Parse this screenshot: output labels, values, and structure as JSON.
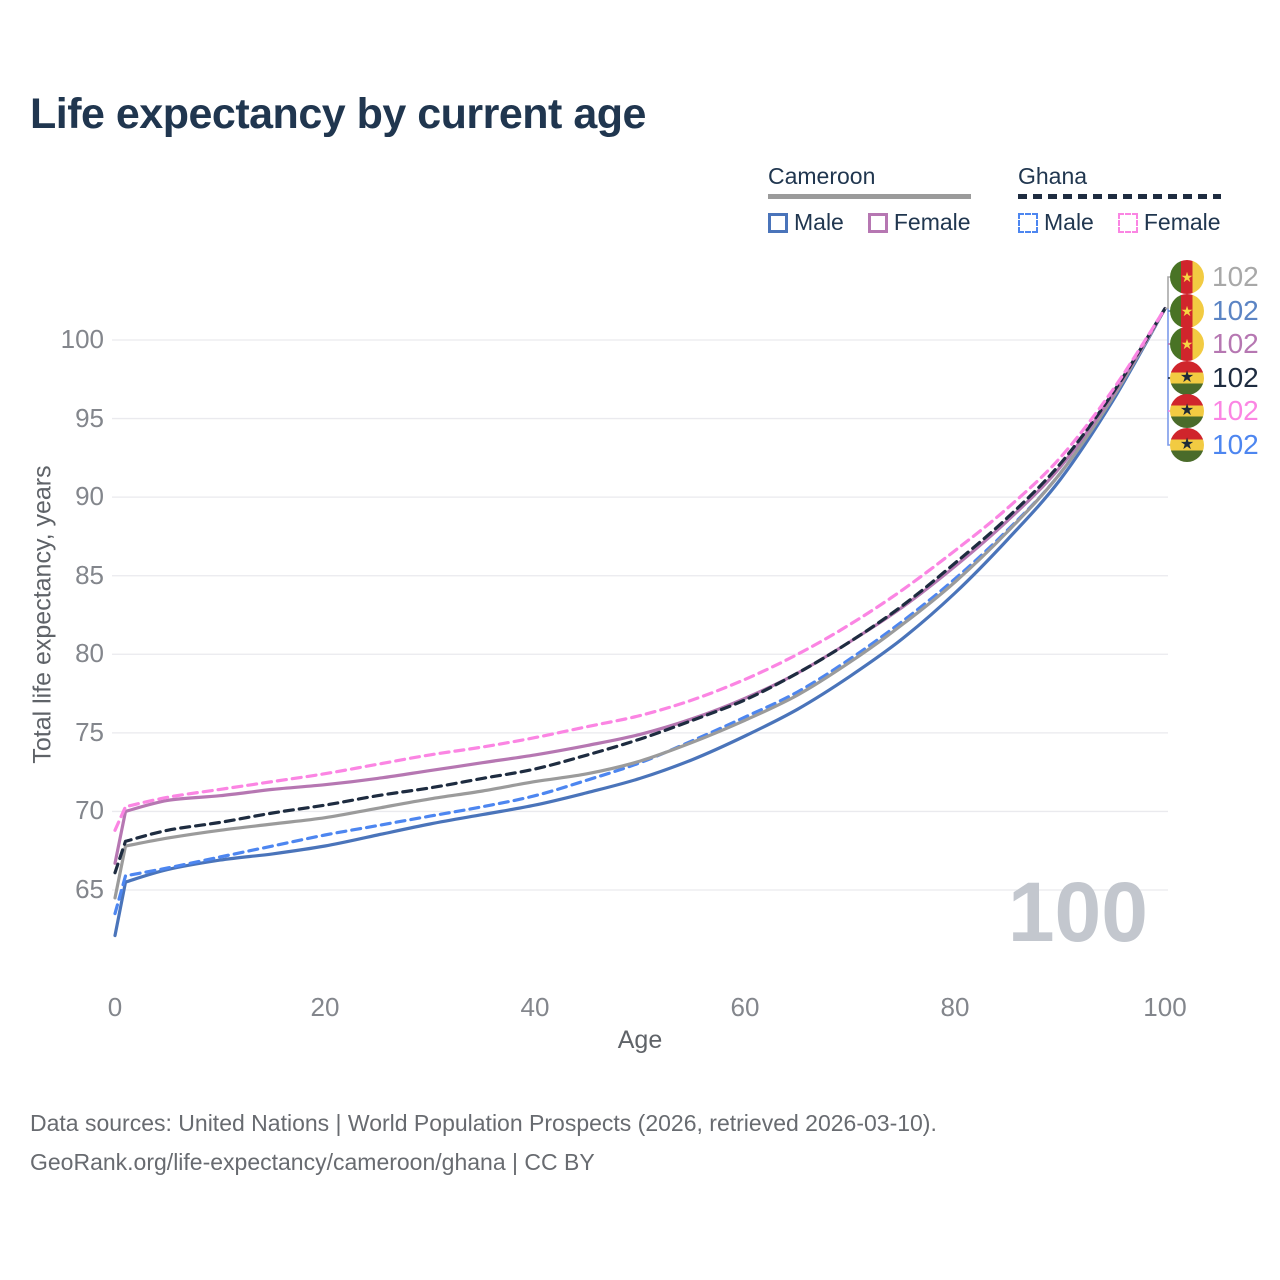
{
  "title": "Life expectancy by current age",
  "legend": {
    "groups": [
      {
        "id": "cameroon",
        "label": "Cameroon",
        "line_style": "solid",
        "line_color": "#9b9b9b",
        "items": [
          {
            "id": "cameroon-male",
            "label": "Male",
            "color": "#4a74ba",
            "style": "solid"
          },
          {
            "id": "cameroon-female",
            "label": "Female",
            "color": "#b677b2",
            "style": "solid"
          }
        ]
      },
      {
        "id": "ghana",
        "label": "Ghana",
        "line_style": "dashed",
        "line_color": "#1e2c40",
        "items": [
          {
            "id": "ghana-male",
            "label": "Male",
            "color": "#4d86f0",
            "style": "dashed"
          },
          {
            "id": "ghana-female",
            "label": "Female",
            "color": "#fb85e3",
            "style": "dashed"
          }
        ]
      }
    ]
  },
  "chart_data": {
    "type": "line",
    "title": "Life expectancy by current age",
    "xlabel": "Age",
    "ylabel": "Total life expectancy, years",
    "xlim": [
      0,
      100
    ],
    "ylim": [
      65,
      100
    ],
    "x_ticks": [
      0,
      20,
      40,
      60,
      80,
      100
    ],
    "y_ticks": [
      65,
      70,
      75,
      80,
      85,
      90,
      95,
      100
    ],
    "grid": "horizontal",
    "legend_position": "top-right",
    "ages": [
      0,
      1,
      5,
      10,
      15,
      20,
      25,
      30,
      35,
      40,
      45,
      50,
      55,
      60,
      65,
      70,
      75,
      80,
      85,
      90,
      95,
      100
    ],
    "series": [
      {
        "id": "cameroon-male",
        "country": "Cameroon",
        "group": "Male",
        "color": "#4a74ba",
        "dash": "solid",
        "values": [
          62.1,
          65.5,
          66.3,
          66.9,
          67.3,
          67.8,
          68.5,
          69.2,
          69.8,
          70.4,
          71.2,
          72.1,
          73.3,
          74.8,
          76.5,
          78.6,
          81.0,
          83.9,
          87.3,
          91.1,
          96.1,
          102
        ]
      },
      {
        "id": "ghana-male",
        "country": "Ghana",
        "group": "Male",
        "color": "#4d86f0",
        "dash": "dashed",
        "values": [
          63.5,
          65.9,
          66.4,
          67.1,
          67.8,
          68.5,
          69.1,
          69.7,
          70.3,
          71.0,
          72.0,
          73.1,
          74.5,
          76.0,
          77.6,
          79.7,
          82.1,
          84.8,
          87.9,
          91.5,
          96.4,
          102
        ]
      },
      {
        "id": "cameroon-average",
        "country": "Cameroon",
        "group": "Average",
        "color": "#9b9b9b",
        "dash": "solid",
        "values": [
          64.5,
          67.8,
          68.3,
          68.8,
          69.2,
          69.6,
          70.2,
          70.8,
          71.3,
          71.9,
          72.4,
          73.2,
          74.4,
          75.8,
          77.4,
          79.5,
          81.9,
          84.6,
          87.8,
          91.5,
          96.3,
          102
        ]
      },
      {
        "id": "cameroon-female",
        "country": "Cameroon",
        "group": "Female",
        "color": "#b677b2",
        "dash": "solid",
        "values": [
          66.7,
          70.0,
          70.7,
          71.0,
          71.4,
          71.7,
          72.1,
          72.6,
          73.1,
          73.6,
          74.2,
          74.9,
          75.9,
          77.2,
          78.8,
          80.8,
          83.0,
          85.6,
          88.5,
          91.9,
          96.5,
          102
        ]
      },
      {
        "id": "ghana-average",
        "country": "Ghana",
        "group": "Average",
        "color": "#1e2c40",
        "dash": "dashed",
        "values": [
          66.1,
          68.1,
          68.8,
          69.3,
          69.9,
          70.4,
          71.0,
          71.5,
          72.1,
          72.7,
          73.6,
          74.6,
          75.8,
          77.1,
          78.8,
          80.8,
          83.1,
          85.8,
          88.7,
          92.1,
          96.6,
          102
        ]
      },
      {
        "id": "ghana-female",
        "country": "Ghana",
        "group": "Female",
        "color": "#fb85e3",
        "dash": "dashed",
        "values": [
          68.8,
          70.3,
          70.9,
          71.4,
          71.9,
          72.4,
          73.0,
          73.6,
          74.1,
          74.7,
          75.4,
          76.1,
          77.1,
          78.4,
          80.0,
          81.9,
          84.1,
          86.6,
          89.3,
          92.5,
          96.8,
          102
        ]
      }
    ],
    "end_labels": [
      {
        "flag": "cameroon",
        "series": "cameroon-average",
        "value": "102",
        "color": "#a8a8a8"
      },
      {
        "flag": "cameroon",
        "series": "cameroon-male",
        "value": "102",
        "color": "#5b84c4"
      },
      {
        "flag": "cameroon",
        "series": "cameroon-female",
        "value": "102",
        "color": "#b677b2"
      },
      {
        "flag": "ghana",
        "series": "ghana-average",
        "value": "102",
        "color": "#1e2c40"
      },
      {
        "flag": "ghana",
        "series": "ghana-female",
        "value": "102",
        "color": "#fb85e3"
      },
      {
        "flag": "ghana",
        "series": "ghana-male",
        "value": "102",
        "color": "#4d86f0"
      }
    ],
    "watermark": "100"
  },
  "footer": {
    "line1": "Data sources: United Nations | World Population Prospects (2026, retrieved 2026-03-10).",
    "line2": "GeoRank.org/life-expectancy/cameroon/ghana | CC BY"
  }
}
